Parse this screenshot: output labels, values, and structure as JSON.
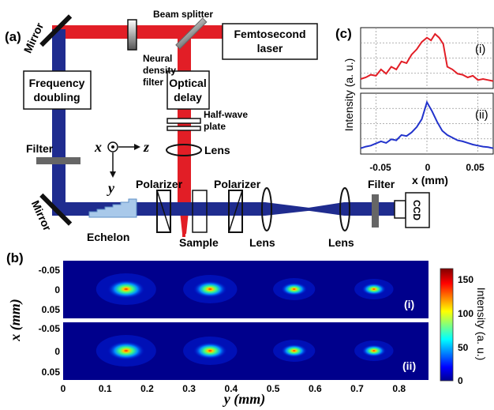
{
  "panels": {
    "a": "(a)",
    "b": "(b)",
    "c": "(c)"
  },
  "setup": {
    "mirror_top": "Mirror",
    "mirror_bottom": "Mirror",
    "beam_splitter": "Beam splitter",
    "laser": [
      "Femtosecond",
      "laser"
    ],
    "nd_filter": [
      "Neural",
      "density",
      "filter"
    ],
    "freq_doubling": [
      "Frequency",
      "doubling"
    ],
    "optical_delay": [
      "Optical",
      "delay"
    ],
    "half_wave": [
      "Half-wave",
      "plate"
    ],
    "lens_top": "Lens",
    "filter_left": "Filter",
    "filter_right": "Filter",
    "polarizer_left": "Polarizer",
    "polarizer_right": "Polarizer",
    "echelon": "Echelon",
    "sample": "Sample",
    "lens_1": "Lens",
    "lens_2": "Lens",
    "ccd": "CCD",
    "coord": {
      "x": "x",
      "z": "z",
      "y": "y"
    }
  },
  "colors": {
    "probe": "#1f2c8f",
    "pump": "#e21e26",
    "echelon": "#a9c9ea",
    "filter": "#666666"
  },
  "panel_b": {
    "ylabel": "x (mm)",
    "xlabel": "y (mm)",
    "yticks": [
      "-0.05",
      "0",
      "0.05"
    ],
    "xticks": [
      "0",
      "0.1",
      "0.2",
      "0.3",
      "0.4",
      "0.5",
      "0.6",
      "0.7",
      "0.8"
    ],
    "x_range": [
      0,
      0.87
    ],
    "spots_y_mm": [
      0.15,
      0.35,
      0.55,
      0.74
    ],
    "rows": [
      "(i)",
      "(ii)"
    ],
    "colorbar": {
      "label": "Intensity (a. u.)",
      "ticks": [
        "0",
        "50",
        "100",
        "150"
      ],
      "range": [
        0,
        165
      ]
    }
  },
  "chart_data": {
    "type": "line",
    "xlabel": "x (mm)",
    "ylabel": "Intensity (a. u.)",
    "xlim": [
      -0.065,
      0.065
    ],
    "xticks": [
      "-0.05",
      "0",
      "0.05"
    ],
    "grid": true,
    "series": [
      {
        "name": "(i)",
        "color": "#e21e26",
        "x": [
          -0.065,
          -0.06,
          -0.055,
          -0.05,
          -0.045,
          -0.04,
          -0.035,
          -0.03,
          -0.025,
          -0.02,
          -0.015,
          -0.01,
          -0.005,
          0,
          0.004,
          0.008,
          0.012,
          0.016,
          0.02,
          0.025,
          0.03,
          0.035,
          0.04,
          0.045,
          0.05,
          0.055,
          0.06,
          0.065
        ],
        "y": [
          0.12,
          0.15,
          0.2,
          0.18,
          0.3,
          0.22,
          0.35,
          0.3,
          0.45,
          0.42,
          0.58,
          0.68,
          0.82,
          0.9,
          0.85,
          0.97,
          0.9,
          0.78,
          0.35,
          0.3,
          0.22,
          0.2,
          0.15,
          0.18,
          0.1,
          0.12,
          0.1,
          0.08
        ]
      },
      {
        "name": "(ii)",
        "color": "#2233cc",
        "x": [
          -0.065,
          -0.06,
          -0.055,
          -0.05,
          -0.045,
          -0.04,
          -0.035,
          -0.03,
          -0.025,
          -0.02,
          -0.015,
          -0.01,
          -0.005,
          0,
          0.005,
          0.01,
          0.015,
          0.02,
          0.025,
          0.03,
          0.035,
          0.04,
          0.045,
          0.05,
          0.055,
          0.06,
          0.065
        ],
        "y": [
          0.05,
          0.08,
          0.1,
          0.14,
          0.18,
          0.15,
          0.22,
          0.2,
          0.3,
          0.28,
          0.35,
          0.45,
          0.6,
          0.92,
          0.75,
          0.55,
          0.38,
          0.3,
          0.25,
          0.2,
          0.18,
          0.15,
          0.12,
          0.1,
          0.08,
          0.07,
          0.05
        ]
      }
    ]
  }
}
